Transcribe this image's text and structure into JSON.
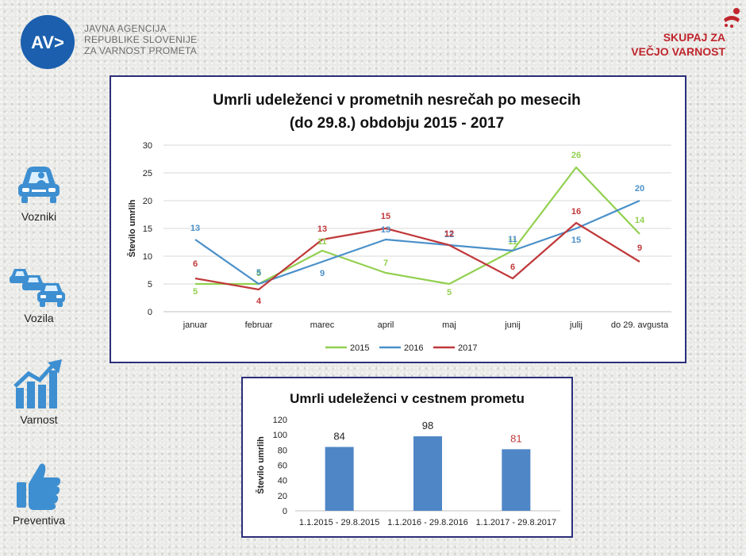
{
  "header": {
    "agency_lines": [
      "JAVNA AGENCIJA",
      "REPUBLIKE SLOVENIJE",
      "ZA VARNOST PROMETA"
    ],
    "logo_mark": "AV>",
    "slogan_lines": [
      "SKUPAJ ZA",
      "VEČJO VARNOST"
    ]
  },
  "sidebar": {
    "items": [
      {
        "label": "Vozniki",
        "icon": "driver-car-icon"
      },
      {
        "label": "Vozila",
        "icon": "vehicles-icon"
      },
      {
        "label": "Varnost",
        "icon": "growth-chart-icon"
      },
      {
        "label": "Preventiva",
        "icon": "thumbs-up-icon"
      }
    ]
  },
  "colors": {
    "s2015": "#92d050",
    "s2016": "#4a90c9",
    "s2017": "#c0393b",
    "bar": "#4f86c6",
    "bar_label_highlight": "#c0393b",
    "frame": "#2b2f7a",
    "grid": "#d9d9d9"
  },
  "chart_data": [
    {
      "type": "line",
      "title": [
        "Umrli udeleženci v prometnih nesrečah po mesecih",
        "(do 29.8.) obdobju 2015 - 2017"
      ],
      "xlabel": "",
      "ylabel": "Število umrlih",
      "ylim": [
        0,
        30
      ],
      "yticks": [
        0,
        5,
        10,
        15,
        20,
        25,
        30
      ],
      "categories": [
        "januar",
        "februar",
        "marec",
        "april",
        "maj",
        "junij",
        "julij",
        "do 29. avgusta"
      ],
      "series": [
        {
          "name": "2015",
          "color": "#92d050",
          "values": [
            5,
            5,
            11,
            7,
            5,
            11,
            26,
            14
          ]
        },
        {
          "name": "2016",
          "color": "#4a90c9",
          "values": [
            13,
            5,
            9,
            13,
            12,
            11,
            15,
            20
          ]
        },
        {
          "name": "2017",
          "color": "#c0393b",
          "values": [
            6,
            4,
            13,
            15,
            12,
            6,
            16,
            9
          ]
        }
      ],
      "legend": "bottom",
      "grid": true
    },
    {
      "type": "bar",
      "title": "Umrli udeleženci v cestnem prometu",
      "xlabel": "",
      "ylabel": "Število umrlih",
      "ylim": [
        0,
        120
      ],
      "yticks": [
        0,
        20,
        40,
        60,
        80,
        100,
        120
      ],
      "categories": [
        "1.1.2015 - 29.8.2015",
        "1.1.2016 - 29.8.2016",
        "1.1.2017 - 29.8.2017"
      ],
      "values": [
        84,
        98,
        81
      ],
      "legend": "none",
      "grid": false
    }
  ]
}
